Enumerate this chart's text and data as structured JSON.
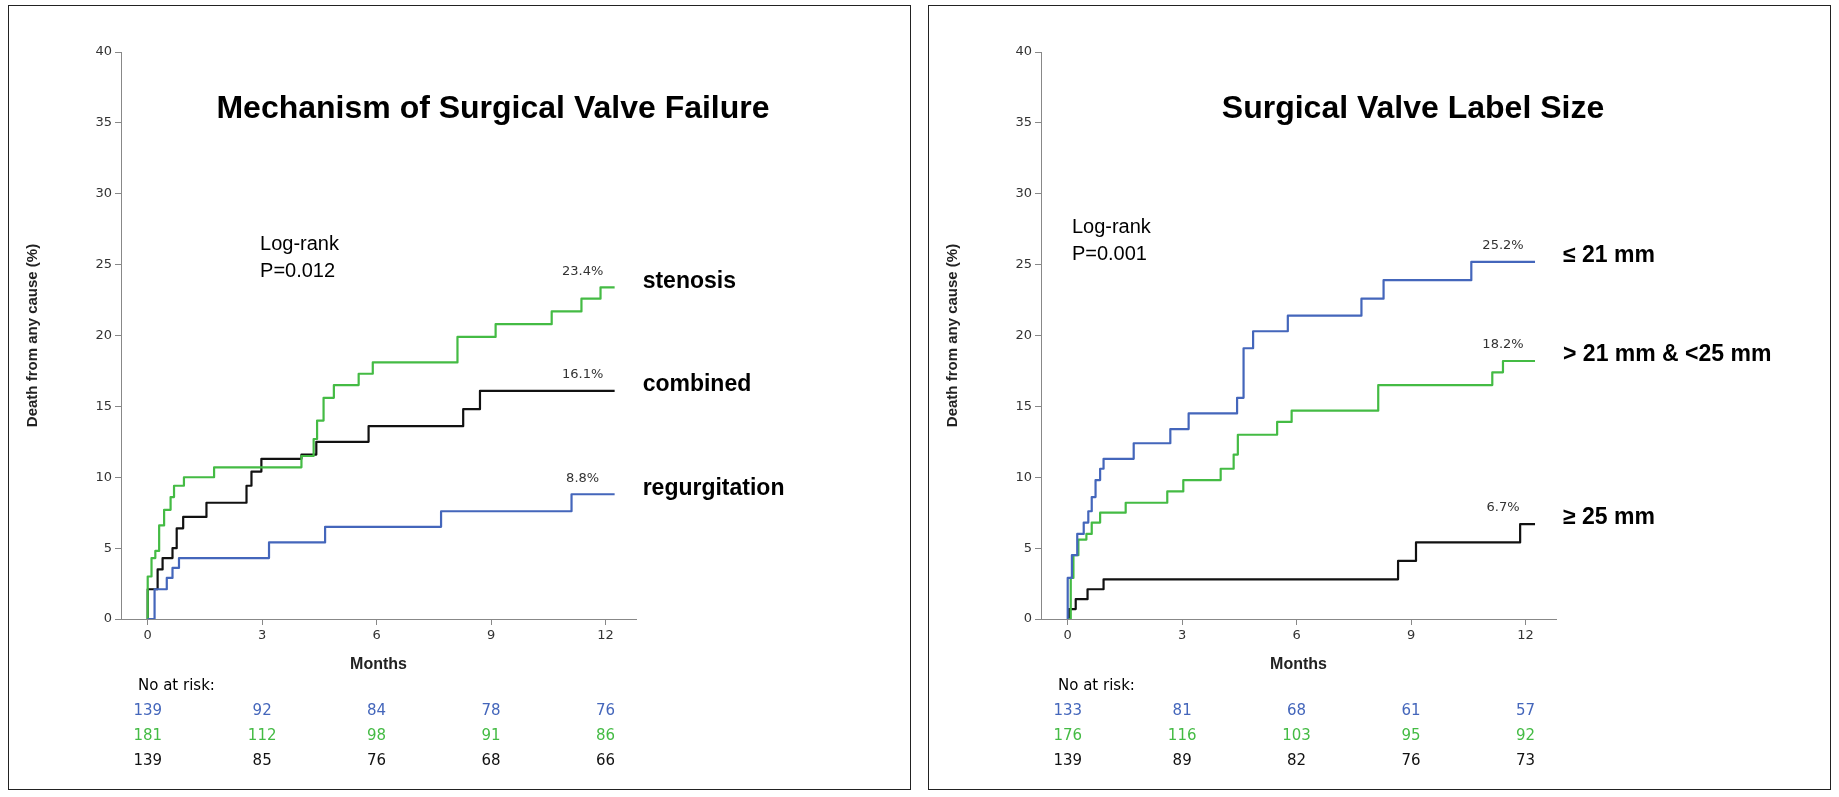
{
  "chart_data": [
    {
      "type": "step",
      "title": "Mechanism of Surgical Valve Failure",
      "xlabel": "Months",
      "ylabel": "Death from any cause (%)",
      "xlim": [
        -0.7,
        12.8
      ],
      "xticks": [
        0,
        3,
        6,
        9,
        12
      ],
      "ylim": [
        0,
        40
      ],
      "yticks": [
        0,
        5,
        10,
        15,
        20,
        25,
        30,
        35,
        40
      ],
      "grid": false,
      "legend": false,
      "marker": "none",
      "series": [
        {
          "name": "regurgitation",
          "color": "#4466bb",
          "x": [
            0,
            0.18,
            0.5,
            0.65,
            0.82,
            3.18,
            4.65,
            7.69,
            11.11,
            12.24
          ],
          "values": [
            0,
            2.1,
            2.9,
            3.6,
            4.3,
            5.4,
            6.5,
            7.6,
            8.8,
            8.8
          ],
          "value_labels": [
            null,
            null,
            null,
            null,
            null,
            null,
            null,
            null,
            null,
            "8.8%"
          ]
        },
        {
          "name": "stenosis",
          "color": "#44bb44",
          "x": [
            0,
            0,
            0.1,
            0.2,
            0.3,
            0.43,
            0.6,
            0.69,
            0.95,
            1.74,
            4.03,
            4.35,
            4.44,
            4.61,
            4.88,
            5.53,
            5.9,
            8.12,
            9.12,
            10.59,
            11.37,
            11.87,
            12.24
          ],
          "values": [
            0,
            3.0,
            4.3,
            4.8,
            6.6,
            7.7,
            8.6,
            9.4,
            10.0,
            10.7,
            11.5,
            12.7,
            14.0,
            15.6,
            16.5,
            17.3,
            18.1,
            19.9,
            20.8,
            21.7,
            22.6,
            23.4,
            23.4
          ],
          "value_labels": [
            null,
            null,
            null,
            null,
            null,
            null,
            null,
            null,
            null,
            null,
            null,
            null,
            null,
            null,
            null,
            null,
            null,
            null,
            null,
            null,
            null,
            null,
            "23.4%"
          ]
        },
        {
          "name": "combined",
          "color": "#111111",
          "x": [
            0,
            0,
            0.26,
            0.39,
            0.65,
            0.76,
            0.93,
            1.54,
            2.59,
            2.72,
            2.98,
            4.03,
            4.42,
            5.79,
            8.27,
            8.71,
            12.24
          ],
          "values": [
            0,
            2.1,
            3.5,
            4.3,
            5.0,
            6.4,
            7.2,
            8.2,
            9.4,
            10.4,
            11.3,
            11.6,
            12.5,
            13.6,
            14.8,
            16.1,
            16.1
          ],
          "value_labels": [
            null,
            null,
            null,
            null,
            null,
            null,
            null,
            null,
            null,
            null,
            null,
            null,
            null,
            null,
            null,
            null,
            "16.1%"
          ]
        }
      ],
      "annotations": [
        "Log-rank",
        "P=0.012",
        "No at risk:",
        "139 92 84 78 76",
        "181 112 98 91 86",
        "139 85 76 68 66"
      ]
    },
    {
      "type": "step",
      "title": "Surgical Valve Label Size",
      "xlabel": "Months",
      "ylabel": "Death from any cause (%)",
      "xlim": [
        -0.7,
        12.8
      ],
      "xticks": [
        0,
        3,
        6,
        9,
        12
      ],
      "ylim": [
        0,
        40
      ],
      "yticks": [
        0,
        5,
        10,
        15,
        20,
        25,
        30,
        35,
        40
      ],
      "grid": false,
      "legend": false,
      "marker": "none",
      "series": [
        {
          "name": "≤ 21 mm",
          "color": "#4466bb",
          "x": [
            0,
            0,
            0.11,
            0.25,
            0.42,
            0.54,
            0.63,
            0.73,
            0.85,
            0.94,
            1.73,
            2.69,
            3.17,
            4.44,
            4.61,
            4.86,
            5.77,
            7.7,
            8.28,
            10.58,
            12.25
          ],
          "values": [
            0,
            2.9,
            4.5,
            6.0,
            6.8,
            7.6,
            8.6,
            9.8,
            10.6,
            11.3,
            12.4,
            13.4,
            14.5,
            15.6,
            19.1,
            20.3,
            21.4,
            22.6,
            23.9,
            25.2,
            25.2
          ],
          "value_labels": [
            null,
            null,
            null,
            null,
            null,
            null,
            null,
            null,
            null,
            null,
            null,
            null,
            null,
            null,
            null,
            null,
            null,
            null,
            null,
            null,
            "25.2%"
          ]
        },
        {
          "name": "> 21 mm & <25 mm",
          "color": "#44bb44",
          "x": [
            0,
            0.08,
            0.15,
            0.28,
            0.49,
            0.63,
            0.85,
            1.52,
            2.61,
            3.03,
            4.01,
            4.35,
            4.46,
            5.49,
            5.87,
            8.14,
            11.13,
            11.41,
            12.25
          ],
          "values": [
            0,
            2.9,
            4.5,
            5.6,
            6.0,
            6.8,
            7.5,
            8.2,
            9.0,
            9.8,
            10.6,
            11.6,
            13.0,
            13.9,
            14.7,
            16.5,
            17.4,
            18.2,
            18.2
          ],
          "value_labels": [
            null,
            null,
            null,
            null,
            null,
            null,
            null,
            null,
            null,
            null,
            null,
            null,
            null,
            null,
            null,
            null,
            null,
            null,
            "18.2%"
          ]
        },
        {
          "name": "≥ 25 mm",
          "color": "#111111",
          "x": [
            0,
            0.03,
            0.21,
            0.52,
            0.94,
            8.66,
            9.13,
            11.86,
            12.25
          ],
          "values": [
            0,
            0.7,
            1.4,
            2.1,
            2.8,
            4.1,
            5.4,
            6.7,
            6.7
          ],
          "value_labels": [
            null,
            null,
            null,
            null,
            null,
            null,
            null,
            null,
            "6.7%"
          ]
        }
      ],
      "annotations": [
        "Log-rank",
        "P=0.001",
        "No at risk:",
        "133 81 68 61 57",
        "176 116 103 95 92",
        "139 89 82 76 73"
      ]
    }
  ]
}
